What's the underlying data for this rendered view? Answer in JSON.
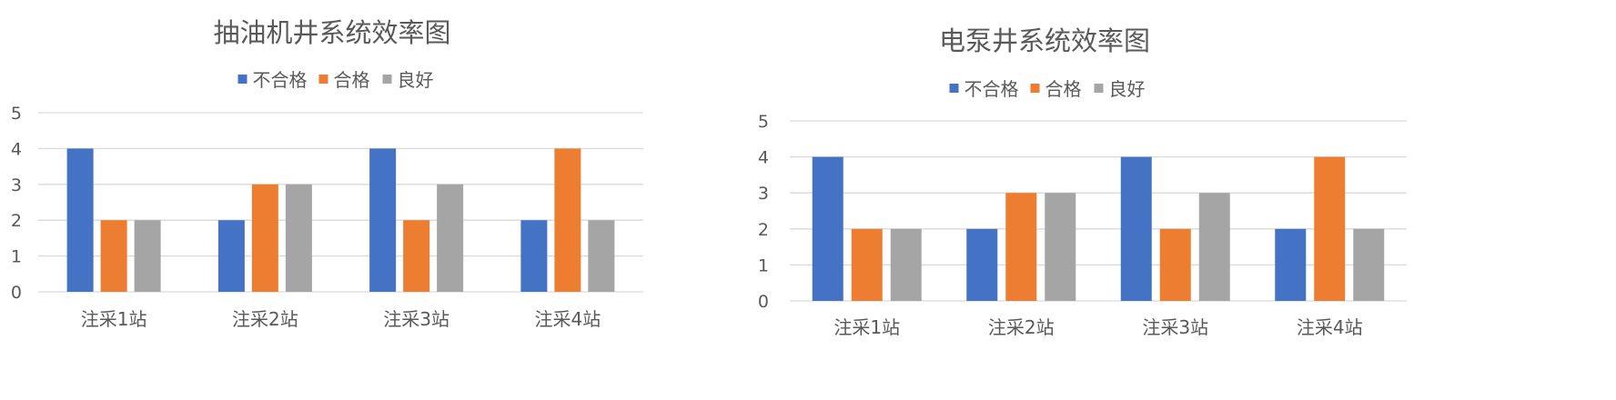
{
  "chart_data": [
    {
      "type": "bar",
      "title": "抽油机井系统效率图",
      "categories": [
        "注采1站",
        "注采2站",
        "注采3站",
        "注采4站"
      ],
      "series": [
        {
          "name": "不合格",
          "color": "#4472C4",
          "values": [
            4,
            2,
            4,
            2
          ]
        },
        {
          "name": "合格",
          "color": "#ED7D31",
          "values": [
            2,
            3,
            2,
            4
          ]
        },
        {
          "name": "良好",
          "color": "#A5A5A5",
          "values": [
            2,
            3,
            3,
            2
          ]
        }
      ],
      "ylim": [
        0,
        5
      ],
      "yticks": [
        0,
        1,
        2,
        3,
        4,
        5
      ],
      "grid": true,
      "legend": "top"
    },
    {
      "type": "bar",
      "title": "电泵井系统效率图",
      "categories": [
        "注采1站",
        "注采2站",
        "注采3站",
        "注采4站"
      ],
      "series": [
        {
          "name": "不合格",
          "color": "#4472C4",
          "values": [
            4,
            2,
            4,
            2
          ]
        },
        {
          "name": "合格",
          "color": "#ED7D31",
          "values": [
            2,
            3,
            2,
            4
          ]
        },
        {
          "name": "良好",
          "color": "#A5A5A5",
          "values": [
            2,
            3,
            3,
            2
          ]
        }
      ],
      "ylim": [
        0,
        5
      ],
      "yticks": [
        0,
        1,
        2,
        3,
        4,
        5
      ],
      "grid": true,
      "legend": "top"
    }
  ]
}
